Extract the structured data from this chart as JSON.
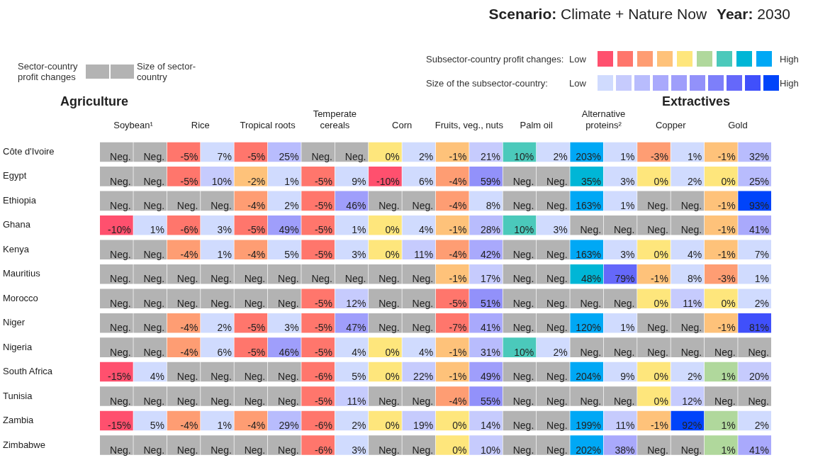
{
  "chart_data": {
    "type": "heatmap",
    "title": "Scenario: Climate + Nature Now",
    "subtitle": "Year: 2030",
    "annotations": [
      "Agriculture",
      "Extractives",
      "Sector-country profit changes",
      "Size of sector-country",
      "Subsector-country profit changes:",
      "Low",
      "High",
      "Size of the subsector-country:",
      "Low",
      "High"
    ],
    "categories": [
      "Soybean¹",
      null,
      "Rice",
      null,
      "Tropical roots",
      null,
      "Temperate cereals",
      null,
      "Corn",
      null,
      "Fruits, veg., nuts",
      null,
      "Palm oil",
      null,
      "Alternative proteins²",
      null,
      "Copper",
      null,
      "Gold",
      null
    ],
    "y_categories": [
      "Côte d'Ivoire",
      "Egypt",
      "Ethiopia",
      "Ghana",
      "Kenya",
      "Mauritius",
      "Morocco",
      "Niger",
      "Nigeria",
      "South Africa",
      "Tunisia",
      "Zambia",
      "Zimbabwe"
    ],
    "cells": [
      [
        null,
        null,
        -5,
        7,
        -5,
        25,
        null,
        null,
        0,
        2,
        -1,
        21,
        10,
        2,
        203,
        1,
        -3,
        1,
        -1,
        32
      ],
      [
        null,
        null,
        -5,
        10,
        -2,
        1,
        -5,
        9,
        -10,
        6,
        -4,
        59,
        null,
        null,
        35,
        3,
        0,
        2,
        0,
        25
      ],
      [
        null,
        null,
        null,
        null,
        -4,
        2,
        -5,
        46,
        null,
        null,
        -4,
        8,
        null,
        null,
        163,
        1,
        null,
        null,
        -1,
        93
      ],
      [
        -10,
        1,
        -6,
        3,
        -5,
        49,
        -5,
        1,
        0,
        4,
        -1,
        28,
        10,
        3,
        null,
        null,
        null,
        null,
        -1,
        41
      ],
      [
        null,
        null,
        -4,
        1,
        -4,
        5,
        -5,
        3,
        0,
        11,
        -4,
        42,
        null,
        null,
        163,
        3,
        0,
        4,
        -1,
        7
      ],
      [
        null,
        null,
        null,
        null,
        null,
        null,
        null,
        null,
        null,
        null,
        -1,
        17,
        null,
        null,
        48,
        79,
        -1,
        8,
        -3,
        1
      ],
      [
        null,
        null,
        null,
        null,
        null,
        null,
        -5,
        12,
        null,
        null,
        -5,
        51,
        null,
        null,
        null,
        null,
        0,
        11,
        0,
        2
      ],
      [
        null,
        null,
        -4,
        2,
        -5,
        3,
        -5,
        47,
        null,
        null,
        -7,
        41,
        null,
        null,
        120,
        1,
        null,
        null,
        -1,
        81
      ],
      [
        null,
        null,
        -4,
        6,
        -5,
        46,
        -5,
        4,
        0,
        4,
        -1,
        31,
        10,
        2,
        null,
        null,
        null,
        null,
        null,
        null
      ],
      [
        -15,
        4,
        null,
        null,
        null,
        null,
        -6,
        5,
        0,
        22,
        -1,
        49,
        null,
        null,
        204,
        9,
        0,
        2,
        1,
        20
      ],
      [
        null,
        null,
        null,
        null,
        null,
        null,
        -5,
        11,
        null,
        null,
        -4,
        55,
        null,
        null,
        null,
        null,
        0,
        12,
        null,
        null
      ],
      [
        -15,
        5,
        -4,
        1,
        -4,
        29,
        -6,
        2,
        0,
        19,
        0,
        14,
        null,
        null,
        199,
        11,
        -1,
        92,
        1,
        2
      ],
      [
        null,
        null,
        null,
        null,
        null,
        null,
        -6,
        3,
        null,
        null,
        0,
        10,
        null,
        null,
        202,
        38,
        null,
        null,
        1,
        41
      ]
    ],
    "cell_labels": [
      [
        "Neg.",
        "Neg.",
        "-5%",
        "7%",
        "-5%",
        "25%",
        "Neg.",
        "Neg.",
        "0%",
        "2%",
        "-1%",
        "21%",
        "10%",
        "2%",
        "203%",
        "1%",
        "-3%",
        "1%",
        "-1%",
        "32%"
      ],
      [
        "Neg.",
        "Neg.",
        "-5%",
        "10%",
        "-2%",
        "1%",
        "-5%",
        "9%",
        "-10%",
        "6%",
        "-4%",
        "59%",
        "Neg.",
        "Neg.",
        "35%",
        "3%",
        "0%",
        "2%",
        "0%",
        "25%"
      ],
      [
        "Neg.",
        "Neg.",
        "Neg.",
        "Neg.",
        "-4%",
        "2%",
        "-5%",
        "46%",
        "Neg.",
        "Neg.",
        "-4%",
        "8%",
        "Neg.",
        "Neg.",
        "163%",
        "1%",
        "Neg.",
        "Neg.",
        "-1%",
        "93%"
      ],
      [
        "-10%",
        "1%",
        "-6%",
        "3%",
        "-5%",
        "49%",
        "-5%",
        "1%",
        "0%",
        "4%",
        "-1%",
        "28%",
        "10%",
        "3%",
        "Neg.",
        "Neg.",
        "Neg.",
        "Neg.",
        "-1%",
        "41%"
      ],
      [
        "Neg.",
        "Neg.",
        "-4%",
        "1%",
        "-4%",
        "5%",
        "-5%",
        "3%",
        "0%",
        "11%",
        "-4%",
        "42%",
        "Neg.",
        "Neg.",
        "163%",
        "3%",
        "0%",
        "4%",
        "-1%",
        "7%"
      ],
      [
        "Neg.",
        "Neg.",
        "Neg.",
        "Neg.",
        "Neg.",
        "Neg.",
        "Neg.",
        "Neg.",
        "Neg.",
        "Neg.",
        "-1%",
        "17%",
        "Neg.",
        "Neg.",
        "48%",
        "79%",
        "-1%",
        "8%",
        "-3%",
        "1%"
      ],
      [
        "Neg.",
        "Neg.",
        "Neg.",
        "Neg.",
        "Neg.",
        "Neg.",
        "-5%",
        "12%",
        "Neg.",
        "Neg.",
        "-5%",
        "51%",
        "Neg.",
        "Neg.",
        "Neg.",
        "Neg.",
        "0%",
        "11%",
        "0%",
        "2%"
      ],
      [
        "Neg.",
        "Neg.",
        "-4%",
        "2%",
        "-5%",
        "3%",
        "-5%",
        "47%",
        "Neg.",
        "Neg.",
        "-7%",
        "41%",
        "Neg.",
        "Neg.",
        "120%",
        "1%",
        "Neg.",
        "Neg.",
        "-1%",
        "81%"
      ],
      [
        "Neg.",
        "Neg.",
        "-4%",
        "6%",
        "-5%",
        "46%",
        "-5%",
        "4%",
        "0%",
        "4%",
        "-1%",
        "31%",
        "10%",
        "2%",
        "Neg.",
        "Neg.",
        "Neg.",
        "Neg.",
        "Neg.",
        "Neg."
      ],
      [
        "-15%",
        "4%",
        "Neg.",
        "Neg.",
        "Neg.",
        "Neg.",
        "-6%",
        "5%",
        "0%",
        "22%",
        "-1%",
        "49%",
        "Neg.",
        "Neg.",
        "204%",
        "9%",
        "0%",
        "2%",
        "1%",
        "20%"
      ],
      [
        "Neg.",
        "Neg.",
        "Neg.",
        "Neg.",
        "Neg.",
        "Neg.",
        "-5%",
        "11%",
        "Neg.",
        "Neg.",
        "-4%",
        "55%",
        "Neg.",
        "Neg.",
        "Neg.",
        "Neg.",
        "0%",
        "12%",
        "Neg.",
        "Neg."
      ],
      [
        "-15%",
        "5%",
        "-4%",
        "1%",
        "-4%",
        "29%",
        "-6%",
        "2%",
        "0%",
        "19%",
        "0%",
        "14%",
        "Neg.",
        "Neg.",
        "199%",
        "11%",
        "-1%",
        "92%",
        "1%",
        "2%"
      ],
      [
        "Neg.",
        "Neg.",
        "Neg.",
        "Neg.",
        "Neg.",
        "Neg.",
        "-6%",
        "3%",
        "Neg.",
        "Neg.",
        "0%",
        "10%",
        "Neg.",
        "Neg.",
        "202%",
        "38%",
        "Neg.",
        "Neg.",
        "1%",
        "41%"
      ]
    ]
  }
}
